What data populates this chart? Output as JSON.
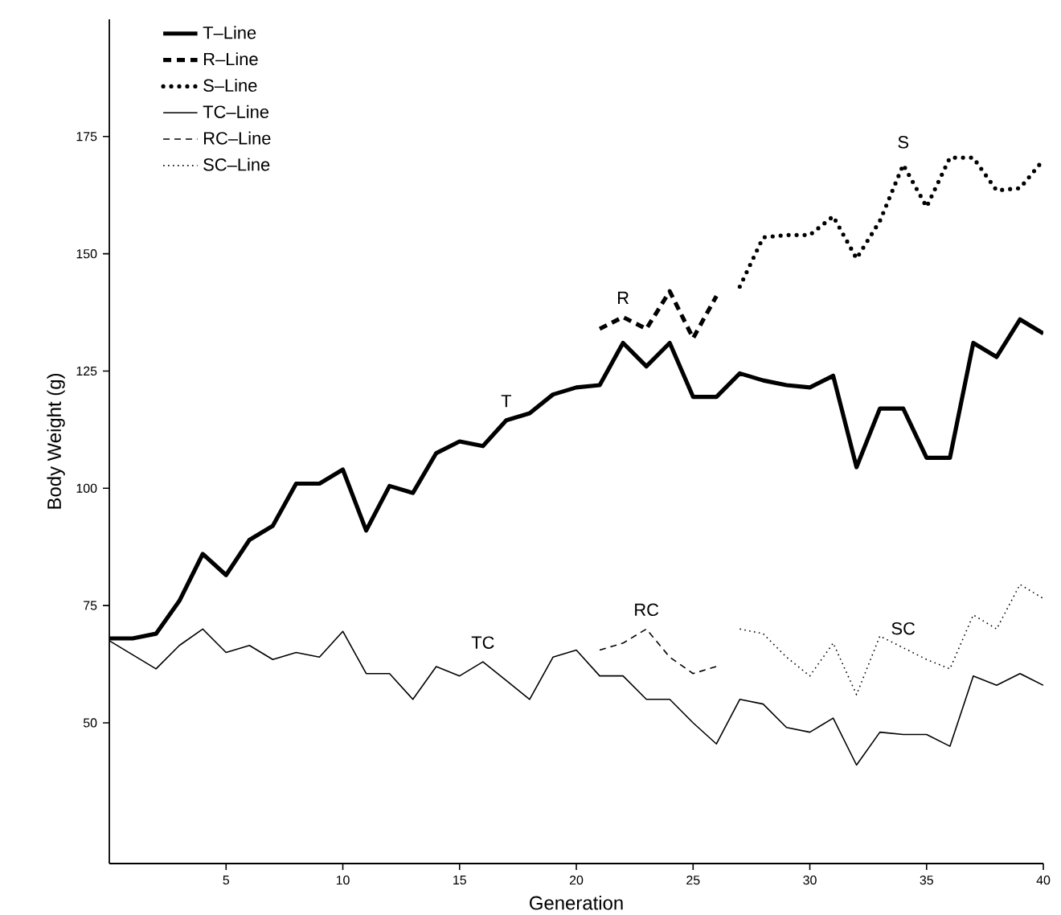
{
  "chart_data": {
    "type": "line",
    "xlabel": "Generation",
    "ylabel": "Body Weight (g)",
    "xlim": [
      0,
      40
    ],
    "ylim": [
      20,
      200
    ],
    "xticks": [
      5,
      10,
      15,
      20,
      25,
      30,
      35,
      40
    ],
    "yticks": [
      50,
      75,
      100,
      125,
      150,
      175
    ],
    "legend": "top left",
    "grid": false,
    "marker": "none",
    "series": [
      {
        "name": "T–Line",
        "color": "#000000",
        "line_style": "solid",
        "x": [
          0,
          1,
          2,
          3,
          4,
          5,
          6,
          7,
          8,
          9,
          10,
          11,
          12,
          13,
          14,
          15,
          16,
          17,
          18,
          19,
          20,
          21,
          22,
          23,
          24,
          25,
          26,
          27,
          28,
          29,
          30,
          31,
          32,
          33,
          34,
          35,
          36,
          37,
          38,
          39,
          40
        ],
        "values": [
          68,
          68,
          69,
          76,
          86,
          81.5,
          89,
          92,
          101,
          101,
          104,
          91,
          100.5,
          99,
          107.5,
          110,
          109,
          114.5,
          116,
          120,
          121.5,
          122,
          131,
          126,
          131,
          119.5,
          119.5,
          124.5,
          123,
          122,
          121.5,
          124,
          104.5,
          117,
          117,
          106.5,
          106.5,
          131,
          128,
          136,
          133
        ]
      },
      {
        "name": "R–Line",
        "color": "#000000",
        "line_style": "dashed",
        "x": [
          21,
          22,
          23,
          24,
          25,
          26
        ],
        "values": [
          134,
          136.5,
          134,
          142,
          132,
          141
        ]
      },
      {
        "name": "S–Line",
        "color": "#000000",
        "line_style": "dotted",
        "x": [
          27,
          28,
          29,
          30,
          31,
          32,
          33,
          34,
          35,
          36,
          37,
          38,
          39,
          40
        ],
        "values": [
          143,
          153.5,
          154,
          154,
          158,
          149,
          157,
          169,
          160,
          170.5,
          170.5,
          163.5,
          164,
          170
        ]
      },
      {
        "name": "TC–Line",
        "color": "#000000",
        "line_style": "solid",
        "x": [
          0,
          1,
          2,
          3,
          4,
          5,
          6,
          7,
          8,
          9,
          10,
          11,
          12,
          13,
          14,
          15,
          16,
          17,
          18,
          19,
          20,
          21,
          22,
          23,
          24,
          25,
          26,
          27,
          28,
          29,
          30,
          31,
          32,
          33,
          34,
          35,
          36,
          37,
          38,
          39,
          40
        ],
        "values": [
          67.5,
          64.5,
          61.5,
          66.5,
          70,
          65,
          66.5,
          63.5,
          65,
          64,
          69.5,
          60.5,
          60.5,
          55,
          62,
          60,
          63,
          59,
          55,
          64,
          65.5,
          60,
          60,
          55,
          55,
          50,
          45.5,
          55,
          54,
          49,
          48,
          51,
          41,
          48,
          47.5,
          47.5,
          45,
          60,
          58,
          60.5,
          58
        ]
      },
      {
        "name": "RC–Line",
        "color": "#000000",
        "line_style": "dashed",
        "x": [
          21,
          22,
          23,
          24,
          25,
          26
        ],
        "values": [
          65.5,
          67,
          70,
          64,
          60.5,
          62
        ]
      },
      {
        "name": "SC–Line",
        "color": "#000000",
        "line_style": "dotted",
        "x": [
          27,
          28,
          29,
          30,
          31,
          32,
          33,
          34,
          35,
          36,
          37,
          38,
          39,
          40
        ],
        "values": [
          70,
          69,
          64,
          60,
          67,
          56,
          68.5,
          66,
          63.5,
          61.5,
          73,
          70,
          79.5,
          76.5
        ]
      }
    ],
    "annotations": [
      "T",
      "R",
      "S",
      "TC",
      "RC",
      "SC"
    ]
  }
}
